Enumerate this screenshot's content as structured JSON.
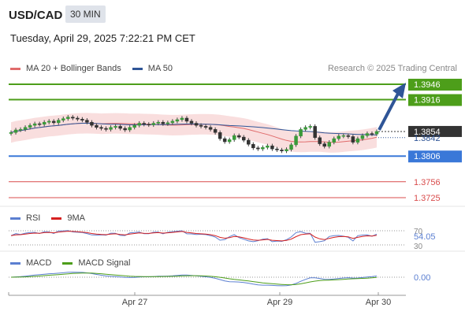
{
  "header": {
    "symbol": "USD/CAD",
    "timeframe": "30 MIN",
    "datetime": "Tuesday, April 29, 2025 7:22:21 PM CET",
    "credit": "Research © 2025 Trading Central"
  },
  "legend": {
    "bollinger_label": "MA 20 + Bollinger Bands",
    "ma50_label": "MA 50",
    "bollinger_color": "#e06b6b",
    "ma50_color": "#2f5597"
  },
  "chart_data": [
    {
      "type": "candlestick",
      "title": "USD/CAD",
      "x_ticks": [
        "Apr 27",
        "Apr 29",
        "Apr 30"
      ],
      "ylim": [
        1.37,
        1.396
      ],
      "levels": [
        {
          "label": "1.3946",
          "value": 1.3946,
          "color": "#4d9e1a",
          "kind": "resistance"
        },
        {
          "label": "1.3916",
          "value": 1.3916,
          "color": "#4d9e1a",
          "kind": "resistance"
        },
        {
          "label": "1.3854",
          "value": 1.3854,
          "color": "#333333",
          "kind": "last price"
        },
        {
          "label": "1.3842",
          "value": 1.3842,
          "color": "#2f5597",
          "kind": "ma50"
        },
        {
          "label": "1.3806",
          "value": 1.3806,
          "color": "#3a78d8",
          "kind": "pivot"
        },
        {
          "label": "1.3756",
          "value": 1.3756,
          "color": "#d94c4c",
          "kind": "support"
        },
        {
          "label": "1.3725",
          "value": 1.3725,
          "color": "#d94c4c",
          "kind": "support"
        }
      ],
      "closes": [
        1.3852,
        1.3857,
        1.3858,
        1.3862,
        1.3866,
        1.3869,
        1.3868,
        1.3872,
        1.3874,
        1.3871,
        1.3876,
        1.3879,
        1.3882,
        1.388,
        1.3878,
        1.3876,
        1.3872,
        1.3866,
        1.3862,
        1.386,
        1.3858,
        1.3862,
        1.3864,
        1.386,
        1.3857,
        1.3862,
        1.3866,
        1.387,
        1.3868,
        1.3867,
        1.387,
        1.3872,
        1.3869,
        1.3871,
        1.3874,
        1.3877,
        1.388,
        1.3874,
        1.387,
        1.3866,
        1.3864,
        1.3862,
        1.3858,
        1.3852,
        1.384,
        1.3834,
        1.3838,
        1.3846,
        1.3843,
        1.3837,
        1.3829,
        1.3822,
        1.382,
        1.3823,
        1.3826,
        1.382,
        1.3818,
        1.3816,
        1.3819,
        1.3828,
        1.3845,
        1.3858,
        1.3862,
        1.3864,
        1.3842,
        1.383,
        1.3825,
        1.3833,
        1.384,
        1.3845,
        1.3846,
        1.3844,
        1.3833,
        1.384,
        1.3846,
        1.385,
        1.3849,
        1.3854
      ],
      "bollinger_band": {
        "upper_offset": 0.002,
        "lower_offset": 0.002
      },
      "forecast_arrow_target": 1.3946
    },
    {
      "type": "line",
      "title": "RSI",
      "series": [
        {
          "name": "RSI"
        },
        {
          "name": "9MA"
        }
      ],
      "levels": [
        "70",
        "30"
      ],
      "last_value": "54.05"
    },
    {
      "type": "line",
      "title": "MACD",
      "series": [
        {
          "name": "MACD"
        },
        {
          "name": "MACD Signal"
        }
      ],
      "last_value": "0.00"
    }
  ],
  "rsi_legend": {
    "rsi": "RSI",
    "ma": "9MA",
    "rsi_color": "#5b7fd1",
    "ma_color": "#d62020"
  },
  "macd_legend": {
    "macd": "MACD",
    "signal": "MACD Signal",
    "macd_color": "#5b7fd1",
    "signal_color": "#4d9e1a"
  }
}
